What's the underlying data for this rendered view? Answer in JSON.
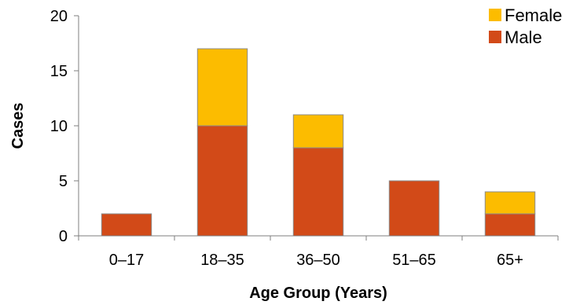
{
  "chart_data": {
    "type": "bar",
    "stacked": true,
    "title": "",
    "xlabel": "Age Group (Years)",
    "ylabel": "Cases",
    "categories": [
      "0–17",
      "18–35",
      "36–50",
      "51–65",
      "65+"
    ],
    "series": [
      {
        "name": "Male",
        "values": [
          2,
          10,
          8,
          5,
          2
        ],
        "color": "#d24a18"
      },
      {
        "name": "Female",
        "values": [
          0,
          7,
          3,
          0,
          2
        ],
        "color": "#fcbc00"
      }
    ],
    "ylim": [
      0,
      20
    ],
    "yticks": [
      0,
      5,
      10,
      15,
      20
    ],
    "grid": false,
    "legend_position": "top-right",
    "legend_order": [
      "Female",
      "Male"
    ]
  }
}
